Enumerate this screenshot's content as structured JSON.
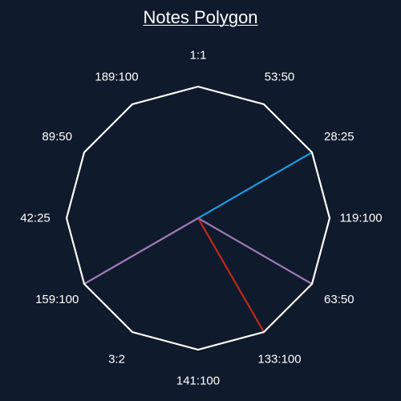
{
  "title": "Notes Polygon",
  "colors": {
    "background": "#0f1a2c",
    "polygon": "#ffffff",
    "label": "#ffffff"
  },
  "vertices": [
    {
      "label": "1:1"
    },
    {
      "label": "53:50"
    },
    {
      "label": "28:25"
    },
    {
      "label": "119:100"
    },
    {
      "label": "63:50"
    },
    {
      "label": "133:100"
    },
    {
      "label": "141:100"
    },
    {
      "label": "3:2"
    },
    {
      "label": "159:100"
    },
    {
      "label": "42:25"
    },
    {
      "label": "89:50"
    },
    {
      "label": "189:100"
    }
  ],
  "lines": [
    {
      "to": "28:25",
      "color": "#1e9ae0"
    },
    {
      "to": "63:50",
      "color": "#a07ab8"
    },
    {
      "to": "133:100",
      "color": "#c0281a"
    },
    {
      "to": "159:100",
      "color": "#a07ab8"
    }
  ]
}
